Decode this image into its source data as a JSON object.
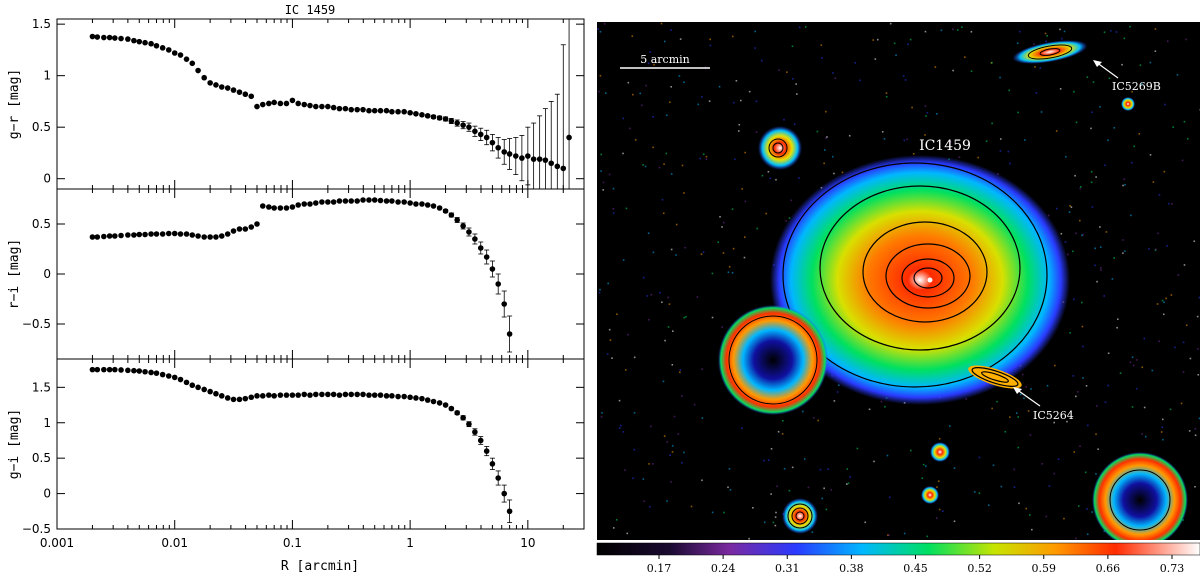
{
  "chart_data": [
    {
      "type": "scatter",
      "title": "IC 1459",
      "ylabel": "g−r [mag]",
      "xscale": "log",
      "xlim": [
        0.001,
        30
      ],
      "ylim": [
        -0.1,
        1.55
      ],
      "yticks": [
        "1.5",
        "1",
        "0.5",
        "0"
      ],
      "ytick_values": [
        1.5,
        1,
        0.5,
        0
      ],
      "x": [
        0.002,
        0.0022,
        0.0025,
        0.0028,
        0.0031,
        0.0035,
        0.004,
        0.0045,
        0.005,
        0.0056,
        0.0063,
        0.007,
        0.0079,
        0.0089,
        0.01,
        0.0112,
        0.0126,
        0.0141,
        0.0158,
        0.0178,
        0.02,
        0.0224,
        0.0251,
        0.0282,
        0.0316,
        0.0355,
        0.0398,
        0.0447,
        0.05,
        0.056,
        0.063,
        0.07,
        0.079,
        0.089,
        0.1,
        0.112,
        0.126,
        0.141,
        0.158,
        0.178,
        0.2,
        0.224,
        0.251,
        0.282,
        0.316,
        0.355,
        0.398,
        0.447,
        0.5,
        0.56,
        0.63,
        0.7,
        0.79,
        0.89,
        1.0,
        1.12,
        1.26,
        1.41,
        1.58,
        1.78,
        2.0,
        2.24,
        2.51,
        2.82,
        3.16,
        3.55,
        3.98,
        4.47,
        5.0,
        5.6,
        6.3,
        7.0,
        7.9,
        8.9,
        10.0,
        11.2,
        12.6,
        14.1,
        15.8,
        17.8,
        20.0,
        22.4
      ],
      "y": [
        1.38,
        1.375,
        1.37,
        1.37,
        1.365,
        1.36,
        1.355,
        1.34,
        1.33,
        1.32,
        1.31,
        1.29,
        1.27,
        1.25,
        1.22,
        1.2,
        1.16,
        1.12,
        1.05,
        0.98,
        0.93,
        0.91,
        0.89,
        0.88,
        0.86,
        0.84,
        0.82,
        0.8,
        0.7,
        0.72,
        0.73,
        0.74,
        0.73,
        0.73,
        0.76,
        0.73,
        0.72,
        0.71,
        0.7,
        0.7,
        0.7,
        0.69,
        0.68,
        0.68,
        0.67,
        0.67,
        0.67,
        0.66,
        0.66,
        0.66,
        0.66,
        0.65,
        0.65,
        0.65,
        0.64,
        0.63,
        0.62,
        0.61,
        0.6,
        0.59,
        0.58,
        0.56,
        0.54,
        0.52,
        0.5,
        0.46,
        0.43,
        0.4,
        0.35,
        0.3,
        0.26,
        0.24,
        0.22,
        0.2,
        0.22,
        0.19,
        0.19,
        0.18,
        0.15,
        0.12,
        0.1,
        0.4
      ],
      "err": [
        0,
        0,
        0,
        0,
        0,
        0,
        0,
        0,
        0,
        0,
        0,
        0,
        0,
        0,
        0,
        0,
        0,
        0,
        0,
        0,
        0,
        0,
        0,
        0,
        0,
        0,
        0,
        0,
        0,
        0,
        0,
        0,
        0,
        0,
        0,
        0,
        0,
        0,
        0,
        0,
        0,
        0,
        0,
        0,
        0,
        0,
        0,
        0,
        0,
        0,
        0,
        0,
        0,
        0,
        0.005,
        0.008,
        0.01,
        0.012,
        0.015,
        0.018,
        0.02,
        0.025,
        0.03,
        0.035,
        0.04,
        0.05,
        0.06,
        0.07,
        0.08,
        0.1,
        0.12,
        0.15,
        0.18,
        0.22,
        0.28,
        0.35,
        0.42,
        0.5,
        0.6,
        0.7,
        1.2,
        1.4
      ]
    },
    {
      "type": "scatter",
      "ylabel": "r−i [mag]",
      "xscale": "log",
      "xlim": [
        0.001,
        30
      ],
      "ylim": [
        -0.85,
        0.85
      ],
      "yticks": [
        "0.5",
        "0",
        "−0.5"
      ],
      "ytick_values": [
        0.5,
        0,
        -0.5
      ],
      "x": [
        0.002,
        0.0022,
        0.0025,
        0.0028,
        0.0031,
        0.0035,
        0.004,
        0.0045,
        0.005,
        0.0056,
        0.0063,
        0.007,
        0.0079,
        0.0089,
        0.01,
        0.0112,
        0.0126,
        0.0141,
        0.0158,
        0.0178,
        0.02,
        0.0224,
        0.0251,
        0.0282,
        0.0316,
        0.0355,
        0.0398,
        0.0447,
        0.05,
        0.056,
        0.063,
        0.07,
        0.079,
        0.089,
        0.1,
        0.112,
        0.126,
        0.141,
        0.158,
        0.178,
        0.2,
        0.224,
        0.251,
        0.282,
        0.316,
        0.355,
        0.398,
        0.447,
        0.5,
        0.56,
        0.63,
        0.7,
        0.79,
        0.89,
        1.0,
        1.12,
        1.26,
        1.41,
        1.58,
        1.78,
        2.0,
        2.24,
        2.51,
        2.82,
        3.16,
        3.55,
        3.98,
        4.47,
        5.0,
        5.6,
        6.3,
        7.0
      ],
      "y": [
        0.37,
        0.37,
        0.375,
        0.38,
        0.38,
        0.385,
        0.39,
        0.39,
        0.395,
        0.395,
        0.4,
        0.4,
        0.4,
        0.405,
        0.405,
        0.4,
        0.4,
        0.39,
        0.38,
        0.37,
        0.37,
        0.37,
        0.38,
        0.4,
        0.43,
        0.45,
        0.45,
        0.47,
        0.5,
        0.68,
        0.67,
        0.66,
        0.66,
        0.66,
        0.67,
        0.69,
        0.7,
        0.7,
        0.71,
        0.72,
        0.72,
        0.72,
        0.73,
        0.73,
        0.73,
        0.73,
        0.74,
        0.74,
        0.74,
        0.735,
        0.73,
        0.73,
        0.72,
        0.72,
        0.71,
        0.7,
        0.7,
        0.69,
        0.68,
        0.66,
        0.63,
        0.59,
        0.54,
        0.48,
        0.42,
        0.35,
        0.26,
        0.17,
        0.05,
        -0.1,
        -0.3,
        -0.6
      ],
      "err": [
        0,
        0,
        0,
        0,
        0,
        0,
        0,
        0,
        0,
        0,
        0,
        0,
        0,
        0,
        0,
        0,
        0,
        0,
        0,
        0,
        0,
        0,
        0,
        0,
        0,
        0,
        0,
        0,
        0,
        0,
        0,
        0,
        0,
        0,
        0,
        0,
        0,
        0,
        0,
        0,
        0,
        0,
        0,
        0,
        0,
        0,
        0,
        0,
        0,
        0,
        0,
        0,
        0,
        0,
        0,
        0,
        0,
        0,
        0,
        0.01,
        0.015,
        0.02,
        0.025,
        0.03,
        0.04,
        0.05,
        0.06,
        0.07,
        0.08,
        0.1,
        0.13,
        0.18
      ]
    },
    {
      "type": "scatter",
      "ylabel": "g−i [mag]",
      "xlabel": "R [arcmin]",
      "xscale": "log",
      "xlim": [
        0.001,
        30
      ],
      "ylim": [
        -0.5,
        1.9
      ],
      "yticks": [
        "1.5",
        "1",
        "0.5",
        "0",
        "−0.5"
      ],
      "ytick_values": [
        1.5,
        1,
        0.5,
        0,
        -0.5
      ],
      "xticks": [
        "0.001",
        "0.01",
        "0.1",
        "1",
        "10"
      ],
      "xtick_values": [
        0.001,
        0.01,
        0.1,
        1,
        10
      ],
      "x": [
        0.002,
        0.0022,
        0.0025,
        0.0028,
        0.0031,
        0.0035,
        0.004,
        0.0045,
        0.005,
        0.0056,
        0.0063,
        0.007,
        0.0079,
        0.0089,
        0.01,
        0.0112,
        0.0126,
        0.0141,
        0.0158,
        0.0178,
        0.02,
        0.0224,
        0.0251,
        0.0282,
        0.0316,
        0.0355,
        0.0398,
        0.0447,
        0.05,
        0.056,
        0.063,
        0.07,
        0.079,
        0.089,
        0.1,
        0.112,
        0.126,
        0.141,
        0.158,
        0.178,
        0.2,
        0.224,
        0.251,
        0.282,
        0.316,
        0.355,
        0.398,
        0.447,
        0.5,
        0.56,
        0.63,
        0.7,
        0.79,
        0.89,
        1.0,
        1.12,
        1.26,
        1.41,
        1.58,
        1.78,
        2.0,
        2.24,
        2.51,
        2.82,
        3.16,
        3.55,
        3.98,
        4.47,
        5.0,
        5.6,
        6.3,
        7.0
      ],
      "y": [
        1.75,
        1.75,
        1.75,
        1.75,
        1.75,
        1.745,
        1.74,
        1.735,
        1.73,
        1.72,
        1.71,
        1.7,
        1.68,
        1.66,
        1.64,
        1.61,
        1.57,
        1.53,
        1.5,
        1.47,
        1.44,
        1.41,
        1.38,
        1.35,
        1.33,
        1.33,
        1.34,
        1.36,
        1.38,
        1.38,
        1.39,
        1.38,
        1.39,
        1.39,
        1.39,
        1.39,
        1.4,
        1.39,
        1.4,
        1.4,
        1.4,
        1.4,
        1.39,
        1.4,
        1.4,
        1.4,
        1.4,
        1.39,
        1.39,
        1.39,
        1.38,
        1.38,
        1.37,
        1.37,
        1.36,
        1.35,
        1.34,
        1.32,
        1.3,
        1.28,
        1.25,
        1.2,
        1.14,
        1.07,
        0.98,
        0.87,
        0.75,
        0.6,
        0.42,
        0.22,
        0.0,
        -0.25
      ],
      "err": [
        0,
        0,
        0,
        0,
        0,
        0,
        0,
        0,
        0,
        0,
        0,
        0,
        0,
        0,
        0,
        0,
        0,
        0,
        0,
        0,
        0,
        0,
        0,
        0,
        0,
        0,
        0,
        0,
        0,
        0,
        0,
        0,
        0,
        0,
        0,
        0,
        0,
        0,
        0,
        0,
        0,
        0,
        0,
        0,
        0,
        0,
        0,
        0,
        0,
        0,
        0,
        0,
        0,
        0,
        0,
        0,
        0,
        0,
        0,
        0.01,
        0.015,
        0.02,
        0.025,
        0.03,
        0.035,
        0.045,
        0.055,
        0.065,
        0.08,
        0.1,
        0.12,
        0.16
      ]
    },
    {
      "type": "heatmap",
      "labels": {
        "scale": "5 arcmin",
        "main_galaxy": "IC1459",
        "companion_1": "IC5269B",
        "companion_2": "IC5264"
      },
      "colorbar": {
        "ticks": [
          "0.17",
          "0.24",
          "0.31",
          "0.38",
          "0.45",
          "0.52",
          "0.59",
          "0.66",
          "0.73"
        ],
        "colors": [
          "#000000",
          "#5a1a8a",
          "#2a3aff",
          "#00b7ff",
          "#00e060",
          "#c8e400",
          "#ff9a00",
          "#ff2a00",
          "#ffffff"
        ]
      }
    }
  ]
}
